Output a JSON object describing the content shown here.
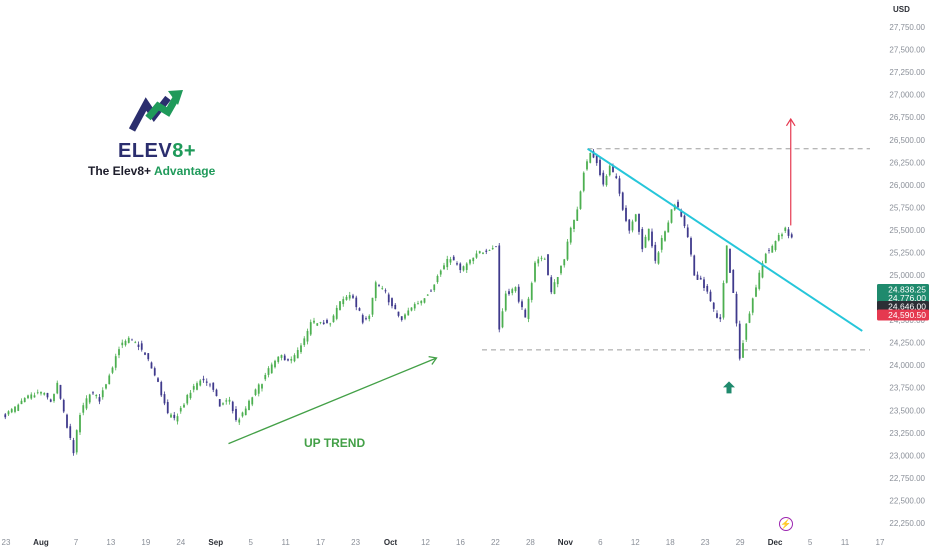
{
  "currency": "USD",
  "logo": {
    "word_main": "ELEV",
    "word_accent": "8+",
    "tagline_main": "The Elev8+ ",
    "tagline_accent": "Advantage",
    "icon": "rising-arrow-logo-icon"
  },
  "annotations": {
    "uptrend_label": "UP TREND",
    "flash_icon": "lightning-icon",
    "flash_glyph": "⚡"
  },
  "colors": {
    "up": "#4caf50",
    "down": "#3f3a8c",
    "trendline": "#26c6da",
    "target_arrow": "#e53950",
    "uptrend_arrow": "#43a047",
    "signal_arrow": "#1f8a6d",
    "level_line": "#9e9e9e"
  },
  "price_badges": [
    {
      "label": "24,838.25",
      "color": "#1f8a6d"
    },
    {
      "label": "24,776.00",
      "color": "#1f8a6d"
    },
    {
      "label": "24,646.00",
      "color": "#2c2f36"
    },
    {
      "label": "24,590.50",
      "color": "#e53950"
    }
  ],
  "chart_data": {
    "type": "candlestick",
    "y_axis": {
      "side": "right",
      "ticks": [
        "27,750.00",
        "27,500.00",
        "27,250.00",
        "27,000.00",
        "26,750.00",
        "26,500.00",
        "26,250.00",
        "26,000.00",
        "25,750.00",
        "25,500.00",
        "25,250.00",
        "25,000.00",
        "24,750.00",
        "24,500.00",
        "24,250.00",
        "24,000.00",
        "23,750.00",
        "23,500.00",
        "23,250.00",
        "23,000.00",
        "22,750.00",
        "22,500.00",
        "22,250.00"
      ],
      "range": [
        22150,
        28050
      ]
    },
    "x_axis": {
      "ticks": [
        {
          "label": "23",
          "month": false
        },
        {
          "label": "Aug",
          "month": true
        },
        {
          "label": "7",
          "month": false
        },
        {
          "label": "13",
          "month": false
        },
        {
          "label": "19",
          "month": false
        },
        {
          "label": "24",
          "month": false
        },
        {
          "label": "Sep",
          "month": true
        },
        {
          "label": "5",
          "month": false
        },
        {
          "label": "11",
          "month": false
        },
        {
          "label": "17",
          "month": false
        },
        {
          "label": "23",
          "month": false
        },
        {
          "label": "Oct",
          "month": true
        },
        {
          "label": "12",
          "month": false
        },
        {
          "label": "16",
          "month": false
        },
        {
          "label": "22",
          "month": false
        },
        {
          "label": "28",
          "month": false
        },
        {
          "label": "Nov",
          "month": true
        },
        {
          "label": "6",
          "month": false
        },
        {
          "label": "12",
          "month": false
        },
        {
          "label": "18",
          "month": false
        },
        {
          "label": "23",
          "month": false
        },
        {
          "label": "29",
          "month": false
        },
        {
          "label": "Dec",
          "month": true
        },
        {
          "label": "5",
          "month": false
        },
        {
          "label": "11",
          "month": false
        },
        {
          "label": "17",
          "month": false
        }
      ]
    },
    "price_anchors": [
      [
        0,
        23430
      ],
      [
        4,
        23520
      ],
      [
        8,
        23640
      ],
      [
        12,
        23700
      ],
      [
        15,
        23600
      ],
      [
        17,
        23780
      ],
      [
        20,
        23300
      ],
      [
        22,
        23050
      ],
      [
        24,
        23450
      ],
      [
        27,
        23700
      ],
      [
        30,
        23620
      ],
      [
        33,
        23900
      ],
      [
        36,
        24200
      ],
      [
        39,
        24280
      ],
      [
        42,
        24220
      ],
      [
        45,
        24050
      ],
      [
        48,
        23800
      ],
      [
        51,
        23450
      ],
      [
        53,
        23400
      ],
      [
        55,
        23520
      ],
      [
        58,
        23700
      ],
      [
        61,
        23850
      ],
      [
        64,
        23790
      ],
      [
        67,
        23550
      ],
      [
        70,
        23620
      ],
      [
        72,
        23380
      ],
      [
        74,
        23450
      ],
      [
        77,
        23650
      ],
      [
        80,
        23820
      ],
      [
        83,
        24000
      ],
      [
        86,
        24100
      ],
      [
        89,
        24050
      ],
      [
        92,
        24200
      ],
      [
        95,
        24450
      ],
      [
        98,
        24500
      ],
      [
        101,
        24450
      ],
      [
        104,
        24700
      ],
      [
        107,
        24800
      ],
      [
        109,
        24650
      ],
      [
        111,
        24500
      ],
      [
        113,
        24550
      ],
      [
        115,
        24900
      ],
      [
        118,
        24800
      ],
      [
        120,
        24650
      ],
      [
        123,
        24500
      ],
      [
        126,
        24650
      ],
      [
        129,
        24720
      ],
      [
        132,
        24850
      ],
      [
        135,
        25050
      ],
      [
        138,
        25200
      ],
      [
        141,
        25050
      ],
      [
        144,
        25150
      ],
      [
        147,
        25250
      ],
      [
        150,
        25300
      ],
      [
        152,
        25320
      ],
      [
        153,
        24400
      ],
      [
        155,
        24800
      ],
      [
        158,
        24850
      ],
      [
        161,
        24500
      ],
      [
        164,
        25150
      ],
      [
        167,
        25200
      ],
      [
        169,
        24800
      ],
      [
        171,
        25000
      ],
      [
        173,
        25200
      ],
      [
        175,
        25500
      ],
      [
        177,
        25750
      ],
      [
        179,
        26150
      ],
      [
        181,
        26350
      ],
      [
        183,
        26250
      ],
      [
        185,
        26000
      ],
      [
        187,
        26200
      ],
      [
        189,
        26050
      ],
      [
        191,
        25750
      ],
      [
        193,
        25500
      ],
      [
        195,
        25700
      ],
      [
        197,
        25300
      ],
      [
        199,
        25500
      ],
      [
        201,
        25150
      ],
      [
        203,
        25400
      ],
      [
        205,
        25600
      ],
      [
        207,
        25800
      ],
      [
        209,
        25650
      ],
      [
        211,
        25400
      ],
      [
        213,
        25000
      ],
      [
        215,
        24950
      ],
      [
        217,
        24800
      ],
      [
        219,
        24600
      ],
      [
        221,
        24500
      ],
      [
        223,
        25300
      ],
      [
        225,
        24800
      ],
      [
        227,
        24100
      ],
      [
        229,
        24450
      ],
      [
        231,
        24750
      ],
      [
        233,
        25000
      ],
      [
        235,
        25250
      ],
      [
        237,
        25300
      ],
      [
        239,
        25450
      ],
      [
        241,
        25500
      ],
      [
        243,
        25420
      ]
    ],
    "trendlines": [
      {
        "name": "",
        "from": [
          180.5,
          26400
        ],
        "to": [
          265,
          24380
        ]
      }
    ],
    "levels": [
      {
        "price": 26400,
        "from_bar": 180.5,
        "to_bar": 268
      },
      {
        "price": 24170,
        "from_bar": 148,
        "to_bar": 268
      }
    ],
    "uptrend_arrow": {
      "from": [
        70,
        23130
      ],
      "to": [
        134,
        24080
      ]
    },
    "target_arrow": {
      "bar": 243,
      "from": 25550,
      "to": 26730
    },
    "signal_arrow": {
      "bar": 224,
      "price": 23820
    }
  }
}
